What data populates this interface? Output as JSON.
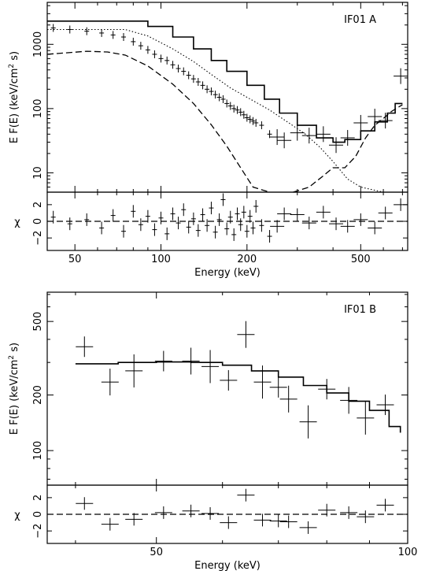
{
  "chart_data": [
    {
      "type": "scatter",
      "panel": "A",
      "annotation": "IF01 A",
      "xlabel": "Energy (keV)",
      "ylabel": "E F(E)  (keV/cm² s)",
      "ylabel_parts": {
        "main": "E F(E)  (keV/cm",
        "sup": "2",
        "tail": " s)"
      },
      "xscale": "log",
      "yscale": "log",
      "xlim": [
        40,
        730
      ],
      "ylim": [
        5,
        4500
      ],
      "x_ticks": [
        50,
        100,
        200,
        500
      ],
      "y_ticks": [
        10,
        100,
        1000
      ],
      "model_total": [
        [
          40,
          2300
        ],
        [
          75,
          2300
        ],
        [
          90,
          1900
        ],
        [
          110,
          1300
        ],
        [
          130,
          850
        ],
        [
          150,
          560
        ],
        [
          170,
          380
        ],
        [
          200,
          230
        ],
        [
          230,
          140
        ],
        [
          260,
          85
        ],
        [
          300,
          55
        ],
        [
          350,
          35
        ],
        [
          400,
          30
        ],
        [
          440,
          33
        ],
        [
          500,
          45
        ],
        [
          560,
          62
        ],
        [
          620,
          85
        ],
        [
          660,
          120
        ],
        [
          700,
          120
        ]
      ],
      "model_dotted": [
        [
          40,
          1700
        ],
        [
          75,
          1700
        ],
        [
          90,
          1350
        ],
        [
          110,
          850
        ],
        [
          130,
          540
        ],
        [
          150,
          340
        ],
        [
          175,
          210
        ],
        [
          200,
          150
        ],
        [
          240,
          95
        ],
        [
          280,
          60
        ],
        [
          320,
          40
        ],
        [
          360,
          25
        ],
        [
          400,
          15
        ],
        [
          450,
          8
        ],
        [
          500,
          6
        ],
        [
          600,
          5
        ],
        [
          700,
          5
        ]
      ],
      "model_dashed": [
        [
          40,
          700
        ],
        [
          55,
          780
        ],
        [
          65,
          760
        ],
        [
          75,
          680
        ],
        [
          90,
          460
        ],
        [
          110,
          240
        ],
        [
          130,
          120
        ],
        [
          150,
          56
        ],
        [
          170,
          26
        ],
        [
          190,
          12
        ],
        [
          210,
          6
        ],
        [
          240,
          5
        ]
      ],
      "model_dashdot": [
        [
          290,
          5
        ],
        [
          330,
          6
        ],
        [
          370,
          9
        ],
        [
          400,
          12
        ],
        [
          440,
          12
        ],
        [
          480,
          18
        ],
        [
          520,
          35
        ],
        [
          560,
          55
        ],
        [
          600,
          70
        ],
        [
          640,
          90
        ],
        [
          700,
          115
        ]
      ],
      "points": [
        [
          42,
          1800
        ],
        [
          48,
          1700
        ],
        [
          55,
          1600
        ],
        [
          62,
          1500
        ],
        [
          68,
          1400
        ],
        [
          74,
          1300
        ],
        [
          80,
          1100
        ],
        [
          85,
          950
        ],
        [
          90,
          820
        ],
        [
          95,
          700
        ],
        [
          100,
          600
        ],
        [
          105,
          560
        ],
        [
          110,
          480
        ],
        [
          115,
          420
        ],
        [
          120,
          380
        ],
        [
          125,
          330
        ],
        [
          130,
          290
        ],
        [
          135,
          260
        ],
        [
          140,
          230
        ],
        [
          145,
          200
        ],
        [
          150,
          185
        ],
        [
          155,
          165
        ],
        [
          160,
          150
        ],
        [
          165,
          140
        ],
        [
          170,
          120
        ],
        [
          175,
          110
        ],
        [
          180,
          100
        ],
        [
          185,
          95
        ],
        [
          190,
          88
        ],
        [
          195,
          80
        ],
        [
          200,
          72
        ],
        [
          205,
          68
        ],
        [
          210,
          64
        ],
        [
          215,
          60
        ],
        [
          225,
          55
        ],
        [
          240,
          40
        ],
        [
          255,
          36
        ],
        [
          270,
          32
        ],
        [
          300,
          42
        ],
        [
          330,
          38
        ],
        [
          370,
          40
        ],
        [
          410,
          27
        ],
        [
          450,
          35
        ],
        [
          500,
          60
        ],
        [
          560,
          75
        ],
        [
          610,
          65
        ],
        [
          690,
          320
        ]
      ],
      "residual": {
        "ylabel": "χ",
        "ylim": [
          -3.5,
          3.5
        ],
        "y_ticks": [
          -2,
          0,
          2
        ],
        "y_tick_labels": [
          "−2",
          "0",
          "2"
        ],
        "points": [
          [
            42,
            0.5
          ],
          [
            48,
            -0.3
          ],
          [
            55,
            0.2
          ],
          [
            62,
            -0.8
          ],
          [
            68,
            0.7
          ],
          [
            74,
            -1.2
          ],
          [
            80,
            1.2
          ],
          [
            85,
            -0.4
          ],
          [
            90,
            0.6
          ],
          [
            95,
            -1.0
          ],
          [
            100,
            0.4
          ],
          [
            105,
            -1.5
          ],
          [
            110,
            0.9
          ],
          [
            115,
            -0.2
          ],
          [
            120,
            1.4
          ],
          [
            125,
            -0.7
          ],
          [
            130,
            0.3
          ],
          [
            135,
            -1.1
          ],
          [
            140,
            0.8
          ],
          [
            145,
            -0.5
          ],
          [
            150,
            1.6
          ],
          [
            155,
            -1.3
          ],
          [
            160,
            0.2
          ],
          [
            165,
            2.6
          ],
          [
            170,
            -0.9
          ],
          [
            175,
            0.5
          ],
          [
            180,
            -1.6
          ],
          [
            185,
            0.9
          ],
          [
            190,
            -0.4
          ],
          [
            195,
            1.1
          ],
          [
            200,
            -1.2
          ],
          [
            205,
            0.6
          ],
          [
            210,
            -0.8
          ],
          [
            215,
            1.8
          ],
          [
            225,
            -0.5
          ],
          [
            240,
            -1.8
          ],
          [
            255,
            -0.6
          ],
          [
            270,
            0.9
          ],
          [
            300,
            0.8
          ],
          [
            330,
            -0.2
          ],
          [
            370,
            1.1
          ],
          [
            410,
            -0.3
          ],
          [
            450,
            -0.6
          ],
          [
            500,
            0.2
          ],
          [
            560,
            -0.8
          ],
          [
            610,
            1.0
          ],
          [
            690,
            2.0
          ]
        ]
      }
    },
    {
      "type": "scatter",
      "panel": "B",
      "annotation": "IF01 B",
      "xlabel": "Energy (keV)",
      "ylabel": "E F(E)  (keV/cm² s)",
      "ylabel_parts": {
        "main": "E F(E)  (keV/cm",
        "sup": "2",
        "tail": " s)"
      },
      "xscale": "log",
      "yscale": "log",
      "xlim": [
        37,
        100
      ],
      "ylim": [
        65,
        720
      ],
      "x_ticks": [
        50,
        100
      ],
      "y_ticks": [
        100,
        200,
        500
      ],
      "model_total": [
        [
          40,
          295
        ],
        [
          45,
          300
        ],
        [
          50,
          302
        ],
        [
          55,
          300
        ],
        [
          60,
          290
        ],
        [
          65,
          270
        ],
        [
          70,
          250
        ],
        [
          75,
          225
        ],
        [
          80,
          205
        ],
        [
          85,
          185
        ],
        [
          90,
          165
        ],
        [
          95,
          135
        ],
        [
          98,
          125
        ]
      ],
      "points": [
        [
          41,
          365
        ],
        [
          44,
          235
        ],
        [
          47,
          270
        ],
        [
          51,
          305
        ],
        [
          55,
          305
        ],
        [
          58,
          285
        ],
        [
          61,
          240
        ],
        [
          64,
          425
        ],
        [
          67,
          235
        ],
        [
          70,
          220
        ],
        [
          72,
          190
        ],
        [
          76,
          143
        ],
        [
          80,
          215
        ],
        [
          85,
          187
        ],
        [
          89,
          150
        ],
        [
          94,
          177
        ]
      ],
      "residual": {
        "ylabel": "χ",
        "ylim": [
          -3.5,
          3.5
        ],
        "y_ticks": [
          -2,
          0,
          2
        ],
        "y_tick_labels": [
          "−2",
          "0",
          "2"
        ],
        "points": [
          [
            41,
            1.3
          ],
          [
            44,
            -1.2
          ],
          [
            47,
            -0.6
          ],
          [
            51,
            0.2
          ],
          [
            55,
            0.4
          ],
          [
            58,
            0.1
          ],
          [
            61,
            -1.0
          ],
          [
            64,
            2.3
          ],
          [
            67,
            -0.7
          ],
          [
            70,
            -0.8
          ],
          [
            72,
            -0.9
          ],
          [
            76,
            -1.6
          ],
          [
            80,
            0.5
          ],
          [
            85,
            0.2
          ],
          [
            89,
            -0.3
          ],
          [
            94,
            1.1
          ]
        ]
      }
    }
  ]
}
